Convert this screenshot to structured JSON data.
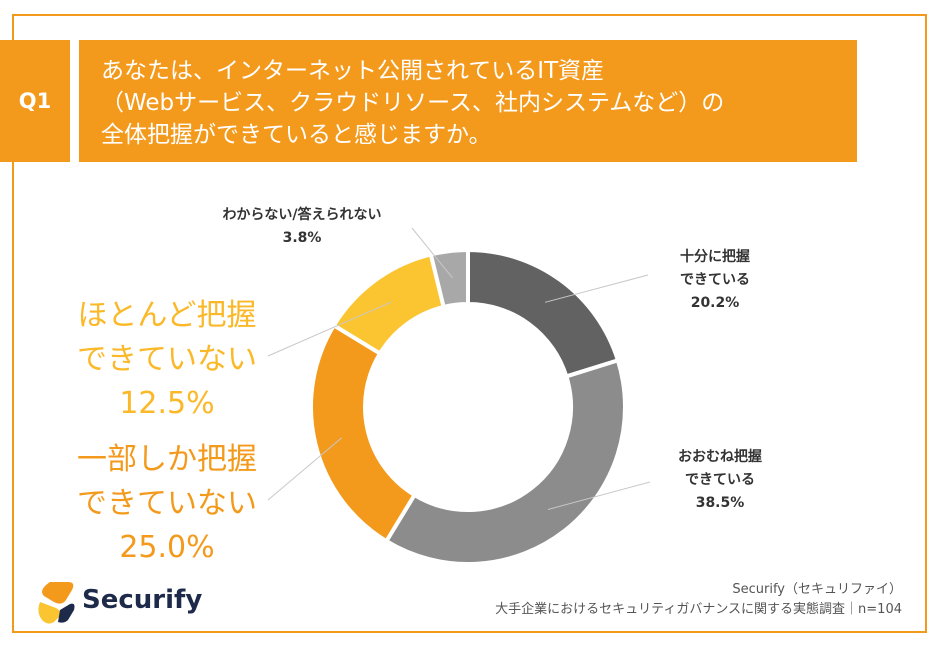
{
  "question": {
    "tag": "Q1",
    "lines": [
      "あなたは、インターネット公開されているIT資産",
      "（Webサービス、クラウドリソース、社内システムなど）の",
      "全体把握ができていると感じますか。"
    ]
  },
  "chart_data": {
    "type": "pie",
    "donut": true,
    "title": "あなたは、インターネット公開されているIT資産（Webサービス、クラウドリソース、社内システムなど）の全体把握ができていると感じますか。",
    "slices": [
      {
        "name_lines": [
          "十分に把握",
          "できている"
        ],
        "value": 20.2,
        "label": "20.2%",
        "color": "#626262"
      },
      {
        "name_lines": [
          "おおむね把握",
          "できている"
        ],
        "value": 38.5,
        "label": "38.5%",
        "color": "#8c8c8c"
      },
      {
        "name_lines": [
          "一部しか把握",
          "できていない"
        ],
        "value": 25.0,
        "label": "25.0%",
        "color": "#f39a1c"
      },
      {
        "name_lines": [
          "ほとんど把握",
          "できていない"
        ],
        "value": 12.5,
        "label": "12.5%",
        "color": "#fbc531"
      },
      {
        "name_lines": [
          "わからない/答えられない"
        ],
        "value": 3.8,
        "label": "3.8%",
        "color": "#a8a8a8"
      }
    ]
  },
  "footer": {
    "brand": "Securify",
    "source_line1": "Securify（セキュリファイ）",
    "source_line2": "大手企業におけるセキュリティガバナンスに関する実態調査｜n=104",
    "logo_colors": [
      "#f39a1c",
      "#fbc531",
      "#1e2a4a"
    ]
  }
}
